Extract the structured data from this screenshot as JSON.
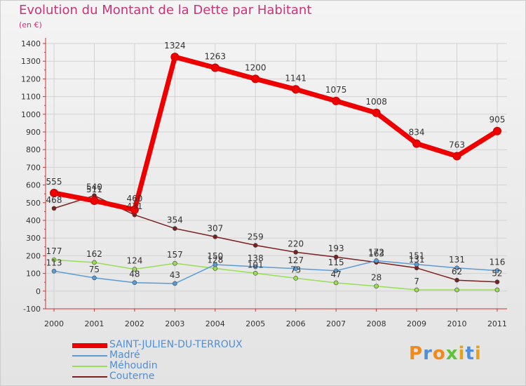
{
  "title": "Evolution du Montant de la Dette par Habitant",
  "subtitle": "(en €)",
  "logo": {
    "text": "Proxiti",
    "colors": [
      "#f08a1c",
      "#4f8fd8",
      "#f08a1c",
      "#5ec23a",
      "#e8a21a",
      "#4f8fd8",
      "#e8a21a"
    ]
  },
  "chart_data": {
    "type": "line",
    "title": "Evolution du Montant de la Dette par Habitant",
    "subtitle": "(en €)",
    "xlabel": "",
    "ylabel": "",
    "x": [
      "2000",
      "2001",
      "2002",
      "2003",
      "2004",
      "2005",
      "2006",
      "2007",
      "2008",
      "2009",
      "2010",
      "2011"
    ],
    "ylim": [
      -100,
      1400
    ],
    "yticks": [
      "-100",
      "0",
      "100",
      "200",
      "300",
      "400",
      "500",
      "600",
      "700",
      "800",
      "900",
      "1000",
      "1100",
      "1200",
      "1300",
      "1400"
    ],
    "grid": true,
    "legend": "bottom-left",
    "series": [
      {
        "name": "SAINT-JULIEN-DU-TERROUX",
        "color": "#ee0000",
        "values": [
          555,
          511,
          460,
          1324,
          1263,
          1200,
          1141,
          1075,
          1008,
          834,
          763,
          905
        ],
        "labels": [
          "555",
          "511",
          "460",
          "1324",
          "1263",
          "1200",
          "1141",
          "1075",
          "1008",
          "834",
          "763",
          "905"
        ]
      },
      {
        "name": "Madré",
        "color": "#5b9bd5",
        "values": [
          113,
          75,
          48,
          43,
          150,
          138,
          127,
          115,
          172,
          151,
          131,
          116
        ],
        "labels": [
          "113",
          "75",
          "48",
          "43",
          "150",
          "138",
          "127",
          "115",
          "172",
          "151",
          "131",
          "116"
        ]
      },
      {
        "name": "Méhoudin",
        "color": "#99dd55",
        "values": [
          177,
          162,
          124,
          157,
          128,
          101,
          73,
          47,
          28,
          7,
          7,
          7
        ],
        "labels": [
          "177",
          "162",
          "124",
          "157",
          "128",
          "101",
          "73",
          "47",
          "28",
          "7",
          "",
          ""
        ]
      },
      {
        "name": "Couterne",
        "color": "#7a2020",
        "values": [
          468,
          540,
          431,
          354,
          307,
          259,
          220,
          193,
          163,
          131,
          62,
          52
        ],
        "labels": [
          "468",
          "540",
          "431",
          "354",
          "307",
          "259",
          "220",
          "193",
          "163",
          "131",
          "62",
          "52"
        ]
      }
    ]
  }
}
